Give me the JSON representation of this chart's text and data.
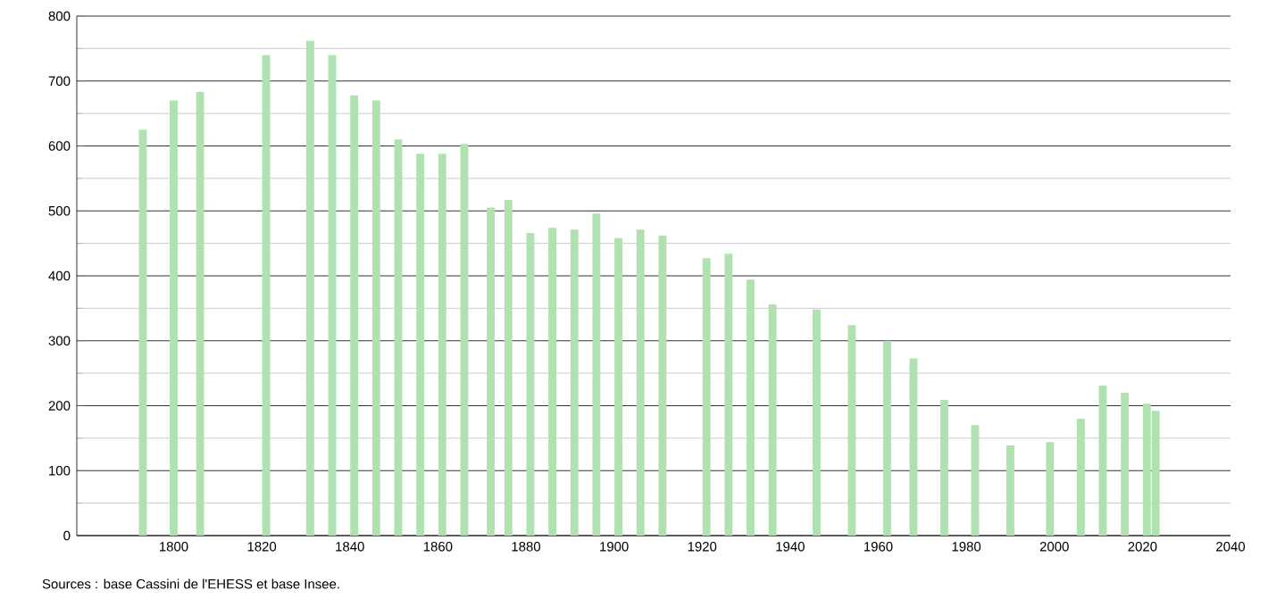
{
  "chart_data": {
    "type": "bar",
    "x": [
      1793,
      1800,
      1806,
      1821,
      1831,
      1836,
      1841,
      1846,
      1851,
      1856,
      1861,
      1866,
      1872,
      1876,
      1881,
      1886,
      1891,
      1896,
      1901,
      1906,
      1911,
      1921,
      1926,
      1931,
      1936,
      1946,
      1954,
      1962,
      1968,
      1975,
      1982,
      1990,
      1999,
      2006,
      2011,
      2016,
      2021,
      2023
    ],
    "values": [
      625,
      670,
      683,
      740,
      762,
      740,
      678,
      670,
      610,
      588,
      588,
      603,
      505,
      517,
      466,
      474,
      471,
      496,
      458,
      471,
      462,
      427,
      434,
      394,
      356,
      348,
      324,
      300,
      273,
      209,
      170,
      139,
      144,
      180,
      231,
      220,
      203,
      192
    ],
    "color": "#b0e2b0",
    "xlim": [
      1778,
      2040
    ],
    "xticks": [
      1800,
      1820,
      1840,
      1860,
      1880,
      1900,
      1920,
      1940,
      1960,
      1980,
      2000,
      2020,
      2040
    ],
    "ylim": [
      0,
      800
    ],
    "yticks": [
      0,
      100,
      200,
      300,
      400,
      500,
      600,
      700,
      800
    ],
    "grid": "y",
    "annotations": [
      "Sources : base Cassini de l'EHESS et base Insee."
    ]
  }
}
